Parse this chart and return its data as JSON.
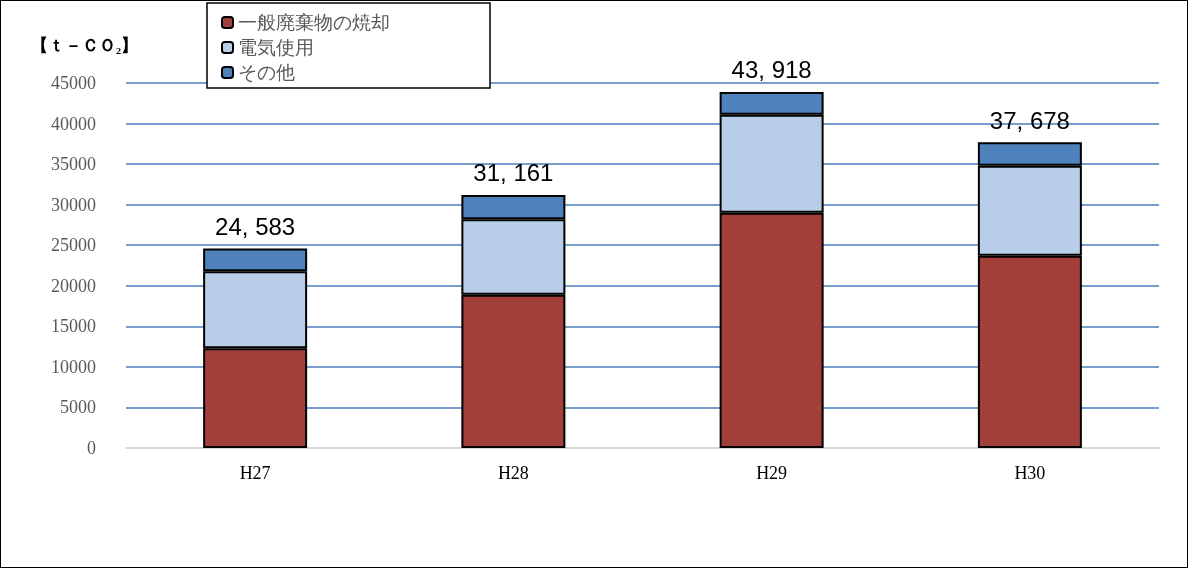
{
  "chart_data": {
    "type": "bar",
    "stacked": true,
    "ylabel": "【ｔ－ＣＯ₂】",
    "categories": [
      "H27",
      "H28",
      "H29",
      "H30"
    ],
    "series": [
      {
        "name": "一般廃棄物の焼却",
        "color": "#a33f3a",
        "values": [
          12300,
          18900,
          29000,
          23700
        ]
      },
      {
        "name": "電気使用",
        "color": "#b7cde8",
        "values": [
          9500,
          9300,
          12100,
          11100
        ]
      },
      {
        "name": "その他",
        "color": "#4f81bd",
        "values": [
          2800,
          3000,
          2800,
          2900
        ]
      }
    ],
    "totals": [
      "24, 583",
      "31, 161",
      "43, 918",
      "37, 678"
    ],
    "ylim": [
      0,
      45000
    ],
    "yticks": [
      0,
      5000,
      10000,
      15000,
      20000,
      25000,
      30000,
      35000,
      40000,
      45000
    ],
    "grid": "y",
    "legend": "top left"
  }
}
